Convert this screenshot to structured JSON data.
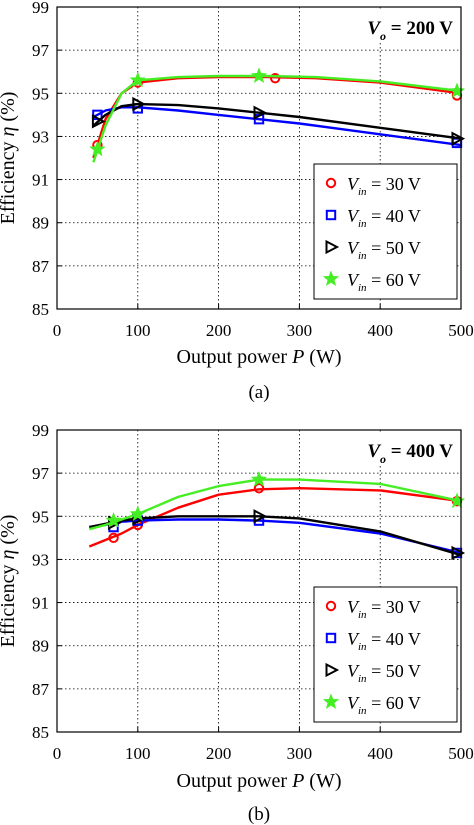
{
  "chart_data": [
    {
      "type": "line",
      "panel_label": "(a)",
      "annotation": {
        "base": "V",
        "sub": "o",
        "rest": " = 200 V"
      },
      "xlabel": "Output power P (W)",
      "ylabel": "Efficiency η (%)",
      "xlim": [
        0,
        500
      ],
      "ylim": [
        85,
        99
      ],
      "xticks": [
        0,
        100,
        200,
        300,
        400,
        500
      ],
      "yticks": [
        85,
        87,
        89,
        91,
        93,
        95,
        97,
        99
      ],
      "grid": "dotted",
      "legend_position": "bottom-right",
      "series": [
        {
          "name": "V_in = 30 V",
          "label_base": "V",
          "label_sub": "in",
          "label_rest": " = 30 V",
          "color": "#ff0000",
          "marker": "circle",
          "points": [
            [
              50,
              92.6
            ],
            [
              100,
              95.5
            ],
            [
              270,
              95.7
            ],
            [
              495,
              94.9
            ]
          ],
          "fit": [
            [
              45,
              92.0
            ],
            [
              60,
              93.8
            ],
            [
              80,
              95.0
            ],
            [
              100,
              95.5
            ],
            [
              150,
              95.7
            ],
            [
              200,
              95.75
            ],
            [
              260,
              95.75
            ],
            [
              320,
              95.7
            ],
            [
              400,
              95.5
            ],
            [
              500,
              95.0
            ]
          ]
        },
        {
          "name": "V_in = 40 V",
          "label_base": "V",
          "label_sub": "in",
          "label_rest": " = 40 V",
          "color": "#0000ff",
          "marker": "square",
          "points": [
            [
              50,
              94.0
            ],
            [
              100,
              94.3
            ],
            [
              250,
              93.8
            ],
            [
              495,
              92.7
            ]
          ],
          "fit": [
            [
              45,
              93.9
            ],
            [
              60,
              94.2
            ],
            [
              80,
              94.35
            ],
            [
              100,
              94.35
            ],
            [
              150,
              94.2
            ],
            [
              200,
              94.0
            ],
            [
              250,
              93.8
            ],
            [
              300,
              93.6
            ],
            [
              400,
              93.1
            ],
            [
              500,
              92.6
            ]
          ]
        },
        {
          "name": "V_in = 50 V",
          "label_base": "V",
          "label_sub": "in",
          "label_rest": " = 50 V",
          "color": "#000000",
          "marker": "triangle-right",
          "points": [
            [
              50,
              93.7
            ],
            [
              100,
              94.5
            ],
            [
              250,
              94.1
            ],
            [
              495,
              92.9
            ]
          ],
          "fit": [
            [
              45,
              93.5
            ],
            [
              60,
              94.0
            ],
            [
              80,
              94.4
            ],
            [
              100,
              94.5
            ],
            [
              150,
              94.45
            ],
            [
              200,
              94.3
            ],
            [
              250,
              94.1
            ],
            [
              300,
              93.9
            ],
            [
              400,
              93.4
            ],
            [
              500,
              92.9
            ]
          ]
        },
        {
          "name": "V_in = 60 V",
          "label_base": "V",
          "label_sub": "in",
          "label_rest": " = 60 V",
          "color": "#44ee22",
          "marker": "star",
          "points": [
            [
              50,
              92.4
            ],
            [
              100,
              95.6
            ],
            [
              250,
              95.8
            ],
            [
              495,
              95.1
            ]
          ],
          "fit": [
            [
              45,
              91.8
            ],
            [
              60,
              93.5
            ],
            [
              80,
              95.0
            ],
            [
              100,
              95.6
            ],
            [
              150,
              95.75
            ],
            [
              200,
              95.8
            ],
            [
              260,
              95.8
            ],
            [
              320,
              95.75
            ],
            [
              400,
              95.55
            ],
            [
              500,
              95.1
            ]
          ]
        }
      ]
    },
    {
      "type": "line",
      "panel_label": "(b)",
      "annotation": {
        "base": "V",
        "sub": "o",
        "rest": " = 400 V"
      },
      "xlabel": "Output power P (W)",
      "ylabel": "Efficiency η (%)",
      "xlim": [
        0,
        500
      ],
      "ylim": [
        85,
        99
      ],
      "xticks": [
        0,
        100,
        200,
        300,
        400,
        500
      ],
      "yticks": [
        85,
        87,
        89,
        91,
        93,
        95,
        97,
        99
      ],
      "grid": "dotted",
      "legend_position": "bottom-right",
      "series": [
        {
          "name": "V_in = 30 V",
          "label_base": "V",
          "label_sub": "in",
          "label_rest": " = 30 V",
          "color": "#ff0000",
          "marker": "circle",
          "points": [
            [
              70,
              94.0
            ],
            [
              100,
              94.6
            ],
            [
              250,
              96.3
            ],
            [
              495,
              95.7
            ]
          ],
          "fit": [
            [
              40,
              93.6
            ],
            [
              60,
              93.9
            ],
            [
              80,
              94.2
            ],
            [
              100,
              94.6
            ],
            [
              150,
              95.4
            ],
            [
              200,
              96.0
            ],
            [
              250,
              96.25
            ],
            [
              300,
              96.3
            ],
            [
              400,
              96.2
            ],
            [
              500,
              95.7
            ]
          ]
        },
        {
          "name": "V_in = 40 V",
          "label_base": "V",
          "label_sub": "in",
          "label_rest": " = 40 V",
          "color": "#0000ff",
          "marker": "square",
          "points": [
            [
              70,
              94.5
            ],
            [
              100,
              94.8
            ],
            [
              250,
              94.8
            ],
            [
              495,
              93.3
            ]
          ],
          "fit": [
            [
              40,
              94.5
            ],
            [
              60,
              94.6
            ],
            [
              80,
              94.75
            ],
            [
              100,
              94.8
            ],
            [
              150,
              94.85
            ],
            [
              200,
              94.85
            ],
            [
              250,
              94.8
            ],
            [
              300,
              94.7
            ],
            [
              400,
              94.2
            ],
            [
              500,
              93.3
            ]
          ]
        },
        {
          "name": "V_in = 50 V",
          "label_base": "V",
          "label_sub": "in",
          "label_rest": " = 50 V",
          "color": "#000000",
          "marker": "triangle-right",
          "points": [
            [
              70,
              94.7
            ],
            [
              100,
              94.9
            ],
            [
              250,
              95.0
            ],
            [
              495,
              93.3
            ]
          ],
          "fit": [
            [
              40,
              94.5
            ],
            [
              60,
              94.65
            ],
            [
              80,
              94.8
            ],
            [
              100,
              94.9
            ],
            [
              150,
              95.0
            ],
            [
              200,
              95.0
            ],
            [
              250,
              95.0
            ],
            [
              300,
              94.9
            ],
            [
              400,
              94.3
            ],
            [
              500,
              93.2
            ]
          ]
        },
        {
          "name": "V_in = 60 V",
          "label_base": "V",
          "label_sub": "in",
          "label_rest": " = 60 V",
          "color": "#44ee22",
          "marker": "star",
          "points": [
            [
              70,
              94.8
            ],
            [
              100,
              95.1
            ],
            [
              250,
              96.7
            ],
            [
              495,
              95.7
            ]
          ],
          "fit": [
            [
              40,
              94.4
            ],
            [
              60,
              94.6
            ],
            [
              80,
              94.85
            ],
            [
              100,
              95.1
            ],
            [
              150,
              95.9
            ],
            [
              200,
              96.4
            ],
            [
              250,
              96.7
            ],
            [
              300,
              96.7
            ],
            [
              400,
              96.5
            ],
            [
              500,
              95.7
            ]
          ]
        }
      ]
    }
  ]
}
